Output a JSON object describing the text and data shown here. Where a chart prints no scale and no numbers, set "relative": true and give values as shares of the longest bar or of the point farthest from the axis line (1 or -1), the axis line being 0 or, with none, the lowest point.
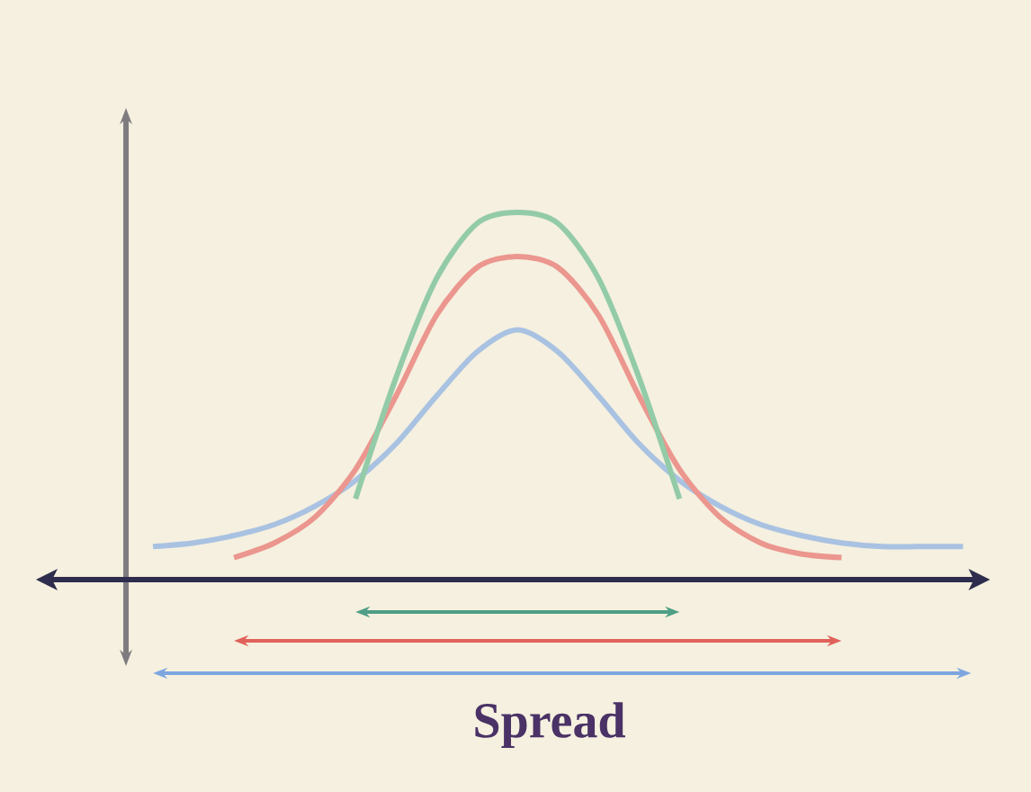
{
  "chart_data": {
    "type": "line",
    "relative": true,
    "xlabel": "Spread",
    "categories": [
      null,
      null,
      null,
      null,
      null,
      null,
      null,
      null,
      null,
      null,
      null,
      null,
      null,
      null,
      null,
      null,
      null,
      null,
      null,
      null,
      null
    ],
    "series": [
      {
        "color": "#a9c2e2",
        "values": [
          0.09,
          0.1,
          0.12,
          0.15,
          0.2,
          0.27,
          0.37,
          0.5,
          0.62,
          0.68,
          0.62,
          0.5,
          0.37,
          0.27,
          0.2,
          0.15,
          0.12,
          0.1,
          0.09,
          0.09,
          0.09
        ]
      },
      {
        "color": "#eb968e",
        "values": [
          null,
          null,
          0.06,
          0.1,
          0.17,
          0.3,
          0.5,
          0.72,
          0.85,
          0.88,
          0.85,
          0.72,
          0.5,
          0.3,
          0.17,
          0.1,
          0.07,
          0.06,
          null,
          null,
          null
        ]
      },
      {
        "color": "#93cba8",
        "values": [
          null,
          null,
          null,
          null,
          null,
          0.22,
          0.55,
          0.82,
          0.97,
          1.0,
          0.97,
          0.82,
          0.55,
          0.22,
          null,
          null,
          null,
          null,
          null,
          null,
          null
        ]
      }
    ]
  }
}
